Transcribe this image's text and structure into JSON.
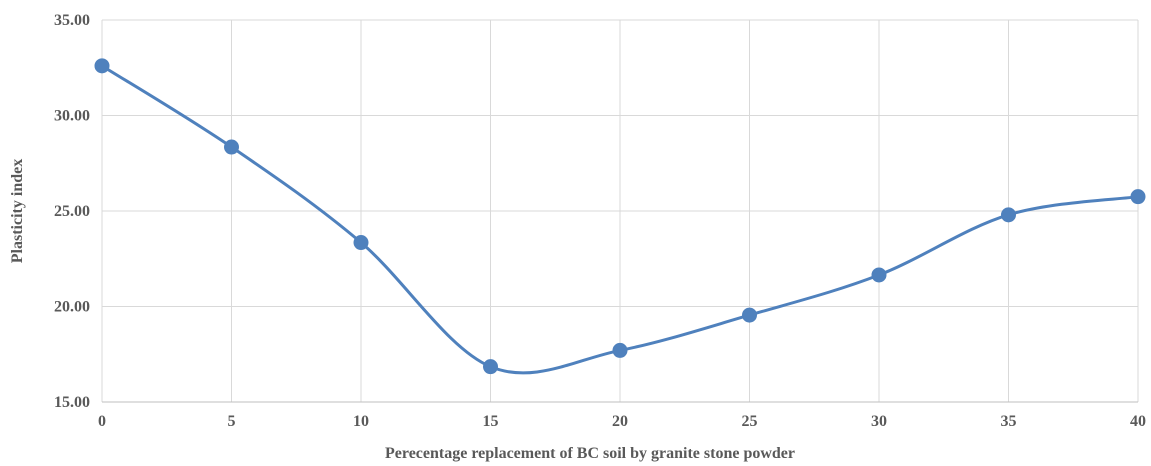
{
  "chart_data": {
    "type": "line",
    "title": "",
    "xlabel": "Perecentage replacement of BC soil by granite stone powder",
    "ylabel": "Plasticity index",
    "x": [
      0,
      5,
      10,
      15,
      20,
      25,
      30,
      35,
      40
    ],
    "series": [
      {
        "values": [
          32.6,
          28.35,
          23.35,
          16.85,
          17.7,
          19.55,
          21.65,
          24.8,
          25.75
        ],
        "color": "#4f81bd",
        "smooth": true,
        "marker": "circle"
      }
    ],
    "xlim": [
      0,
      40
    ],
    "ylim": [
      15,
      35
    ],
    "x_ticks": [
      "0",
      "5",
      "10",
      "15",
      "20",
      "25",
      "30",
      "35",
      "40"
    ],
    "y_ticks": [
      "15.00",
      "20.00",
      "25.00",
      "30.00",
      "35.00"
    ],
    "grid": true,
    "legend": "none"
  }
}
